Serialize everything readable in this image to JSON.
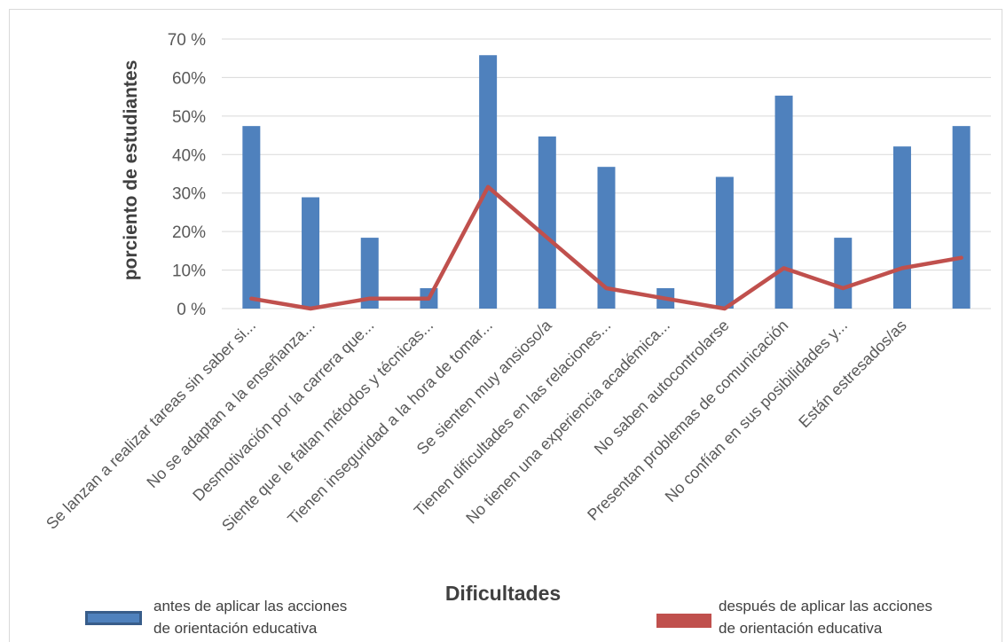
{
  "chart_data": {
    "type": "bar",
    "xlabel": "Dificultades",
    "ylabel": "porciento de estudiantes",
    "ylim": [
      0,
      70
    ],
    "yticks": [
      "0 %",
      "10%",
      "20%",
      "30%",
      "40%",
      "50%",
      "60%",
      "70 %"
    ],
    "categories": [
      "Se lanzan a realizar tareas sin saber si...",
      "No se adaptan a la enseñanza...",
      "Desmotivación por la carrera que...",
      "Siente que le faltan métodos y técnicas...",
      "Tienen inseguridad a la hora de tomar...",
      "Se sienten muy ansioso/a",
      "Tienen dificultades en las relaciones...",
      "No tienen una experiencia académica...",
      "No saben autocontrolarse",
      "Presentan problemas de comunicación",
      "No confían en sus posibilidades y...",
      "Están estresados/as",
      ""
    ],
    "series": [
      {
        "name": "antes de aplicar las acciones de orientación educativa",
        "kind": "bar",
        "color": "#4f81bd",
        "values": [
          47.4,
          28.9,
          18.4,
          5.3,
          65.8,
          44.7,
          36.8,
          5.3,
          34.2,
          55.3,
          18.4,
          42.1,
          47.4
        ]
      },
      {
        "name": "después de aplicar las acciones de orientación educativa",
        "kind": "line",
        "color": "#c0504d",
        "values": [
          2.6,
          0,
          2.6,
          2.6,
          31.6,
          18.4,
          5.3,
          2.6,
          0,
          10.5,
          5.3,
          10.5,
          13.2
        ]
      }
    ],
    "legend": {
      "position": "bottom",
      "bar_label_line1": "antes de aplicar las acciones",
      "bar_label_line2": "de orientación educativa",
      "line_label_line1": "después de aplicar las acciones",
      "line_label_line2": "de orientación educativa"
    },
    "grid": true
  }
}
